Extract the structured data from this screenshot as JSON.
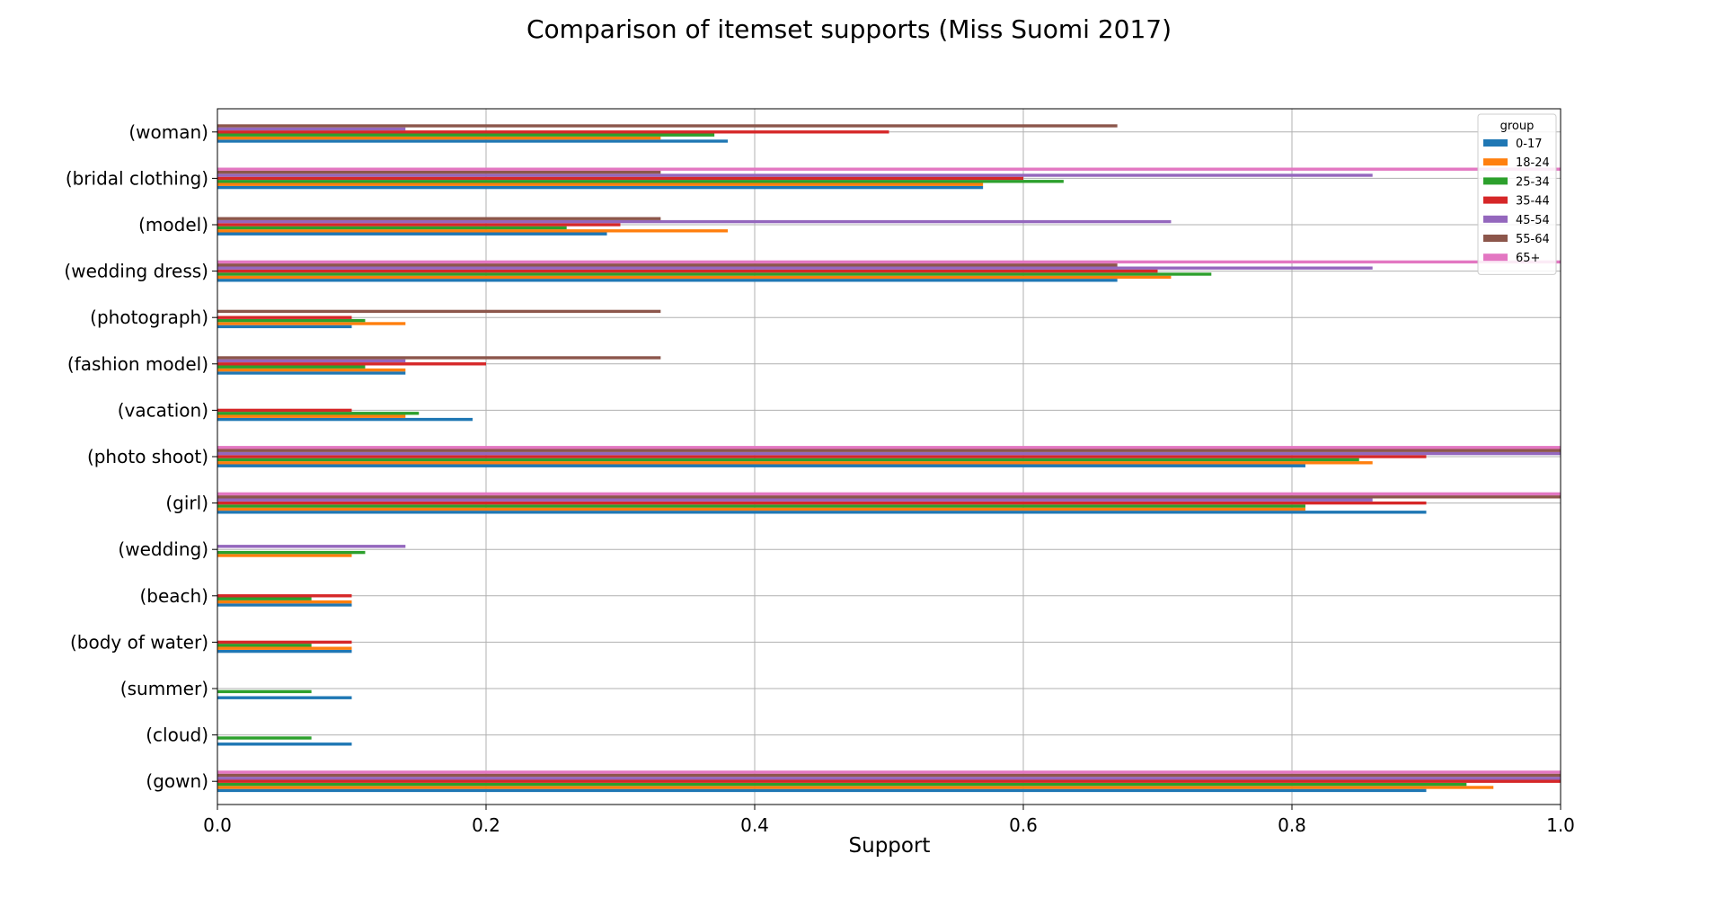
{
  "chart_data": {
    "type": "bar",
    "orientation": "horizontal",
    "title": "Comparison of itemset supports (Miss Suomi 2017)",
    "xlabel": "Support",
    "ylabel": "",
    "xlim": [
      0,
      1.0
    ],
    "xticks": [
      "0.0",
      "0.2",
      "0.4",
      "0.6",
      "0.8",
      "1.0"
    ],
    "grid": true,
    "legend": {
      "title": "group",
      "position": "top-right"
    },
    "categories": [
      "(woman)",
      "(bridal clothing)",
      "(model)",
      "(wedding dress)",
      "(photograph)",
      "(fashion model)",
      "(vacation)",
      "(photo shoot)",
      "(girl)",
      "(wedding)",
      "(beach)",
      "(body of water)",
      "(summer)",
      "(cloud)",
      "(gown)"
    ],
    "series": [
      {
        "name": "0-17",
        "color": "#1f77b4",
        "values": [
          0.38,
          0.57,
          0.29,
          0.67,
          0.1,
          0.14,
          0.19,
          0.81,
          0.9,
          0,
          0.1,
          0.1,
          0.1,
          0.1,
          0.9
        ]
      },
      {
        "name": "18-24",
        "color": "#ff7f0e",
        "values": [
          0.33,
          0.57,
          0.38,
          0.71,
          0.14,
          0.14,
          0.14,
          0.86,
          0.81,
          0.1,
          0.1,
          0.1,
          0,
          0,
          0.95
        ]
      },
      {
        "name": "25-34",
        "color": "#2ca02c",
        "values": [
          0.37,
          0.63,
          0.26,
          0.74,
          0.11,
          0.11,
          0.15,
          0.85,
          0.81,
          0.11,
          0.07,
          0.07,
          0.07,
          0.07,
          0.93
        ]
      },
      {
        "name": "35-44",
        "color": "#d62728",
        "values": [
          0.5,
          0.6,
          0.3,
          0.7,
          0.1,
          0.2,
          0.1,
          0.9,
          0.9,
          0,
          0.1,
          0.1,
          0,
          0,
          1.0
        ]
      },
      {
        "name": "45-54",
        "color": "#9467bd",
        "values": [
          0.14,
          0.86,
          0.71,
          0.86,
          0,
          0.14,
          0,
          1.0,
          0.86,
          0.14,
          0,
          0,
          0,
          0,
          1.0
        ]
      },
      {
        "name": "55-64",
        "color": "#8c564b",
        "values": [
          0.67,
          0.33,
          0.33,
          0.67,
          0.33,
          0.33,
          0,
          1.0,
          1.0,
          0,
          0,
          0,
          0,
          0,
          1.0
        ]
      },
      {
        "name": "65+",
        "color": "#e377c2",
        "values": [
          0,
          1.0,
          0,
          1.0,
          0,
          0,
          0,
          1.0,
          1.0,
          0,
          0,
          0,
          0,
          0,
          1.0
        ]
      }
    ]
  }
}
